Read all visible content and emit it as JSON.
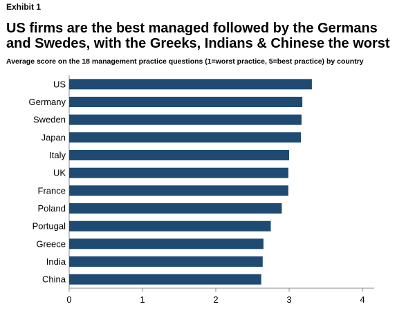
{
  "exhibit": "Exhibit 1",
  "title_line1": "US firms are the best managed followed by the Germans",
  "title_line2": "and Swedes, with the Greeks, Indians & Chinese the worst",
  "subtitle": "Average score on the 18 management practice questions (1=worst practice, 5=best practice) by country",
  "colors": {
    "bar": "#1f4b73",
    "axis": "#888888"
  },
  "chart_data": {
    "type": "bar",
    "orientation": "horizontal",
    "title": "US firms are the best managed followed by the Germans and Swedes, with the Greeks, Indians & Chinese the worst",
    "subtitle": "Average score on the 18 management practice questions (1=worst practice, 5=best practice) by country",
    "categories": [
      "US",
      "Germany",
      "Sweden",
      "Japan",
      "Italy",
      "UK",
      "France",
      "Poland",
      "Portugal",
      "Greece",
      "India",
      "China"
    ],
    "values": [
      3.31,
      3.18,
      3.17,
      3.16,
      3.0,
      2.99,
      2.99,
      2.9,
      2.75,
      2.65,
      2.64,
      2.62
    ],
    "xlim": [
      0,
      4.2
    ],
    "xticks": [
      0,
      1,
      2,
      3,
      4
    ],
    "grid": false,
    "legend": "none"
  }
}
